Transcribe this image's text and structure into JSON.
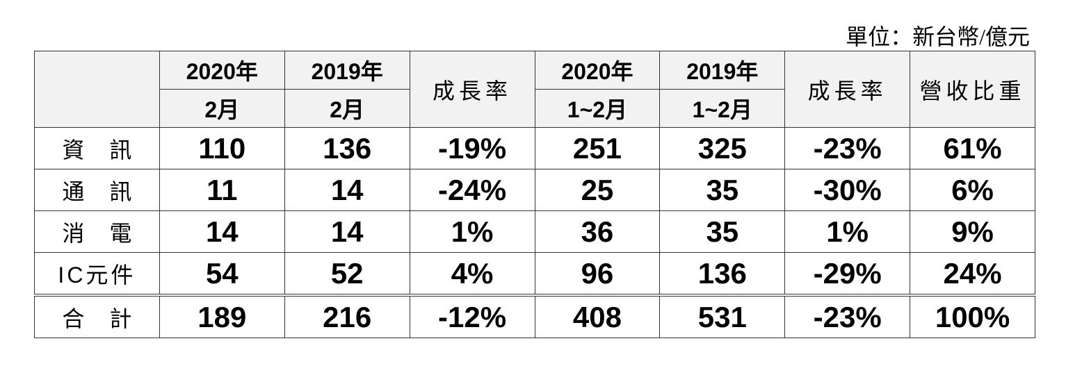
{
  "unit": "單位：新台幣/億元",
  "header": {
    "row1": [
      "2020年",
      "2019年",
      "成長率",
      "2020年",
      "2019年",
      "成長率",
      "營收比重"
    ],
    "row2": [
      "2月",
      "2月",
      "1~2月",
      "1~2月"
    ]
  },
  "table": {
    "rows": [
      {
        "label": "資訊",
        "cells": [
          "110",
          "136",
          "-19%",
          "251",
          "325",
          "-23%",
          "61%"
        ]
      },
      {
        "label": "通訊",
        "cells": [
          "11",
          "14",
          "-24%",
          "25",
          "35",
          "-30%",
          "6%"
        ]
      },
      {
        "label": "消電",
        "cells": [
          "14",
          "14",
          "1%",
          "36",
          "35",
          "1%",
          "9%"
        ]
      },
      {
        "label": "IC元件",
        "cells": [
          "54",
          "52",
          "4%",
          "96",
          "136",
          "-29%",
          "24%"
        ]
      },
      {
        "label": "合計",
        "cells": [
          "189",
          "216",
          "-12%",
          "408",
          "531",
          "-23%",
          "100%"
        ]
      }
    ]
  }
}
